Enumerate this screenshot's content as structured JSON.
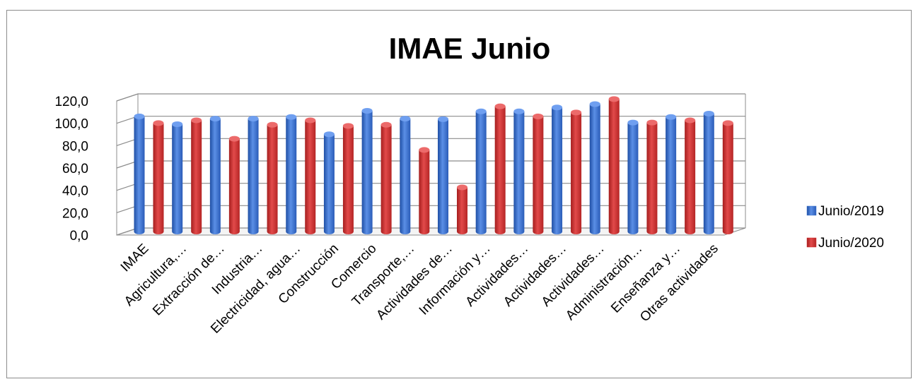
{
  "chart_data": {
    "type": "bar",
    "title": "IMAE Junio",
    "xlabel": "",
    "ylabel": "",
    "ylim": [
      0,
      120
    ],
    "yticks": [
      "0,0",
      "20,0",
      "40,0",
      "60,0",
      "80,0",
      "100,0",
      "120,0"
    ],
    "grid": true,
    "legend_position": "right",
    "categories": [
      "IMAE",
      "Agricultura,…",
      "Extracción de…",
      "Industria…",
      "Electricidad, agua…",
      "Construcción",
      "Comercio",
      "Transporte,…",
      "Actividades de…",
      "Información y…",
      "Actividades…",
      "Actividades…",
      "Actividades…",
      "Administración…",
      "Enseñanza y…",
      "Otras actividades"
    ],
    "series": [
      {
        "name": "Junio/2019",
        "color": "#3e74cc",
        "values": [
          103.0,
          96.0,
          101.0,
          101.0,
          102.5,
          87.0,
          108.0,
          101.0,
          100.5,
          107.5,
          107.5,
          111.0,
          114.0,
          97.5,
          102.5,
          105.5
        ]
      },
      {
        "name": "Junio/2020",
        "color": "#d22f2f",
        "values": [
          97.0,
          99.5,
          83.0,
          95.5,
          99.5,
          94.5,
          95.5,
          73.0,
          39.5,
          112.0,
          103.0,
          106.5,
          118.5,
          97.5,
          99.5,
          97.0
        ]
      }
    ]
  }
}
